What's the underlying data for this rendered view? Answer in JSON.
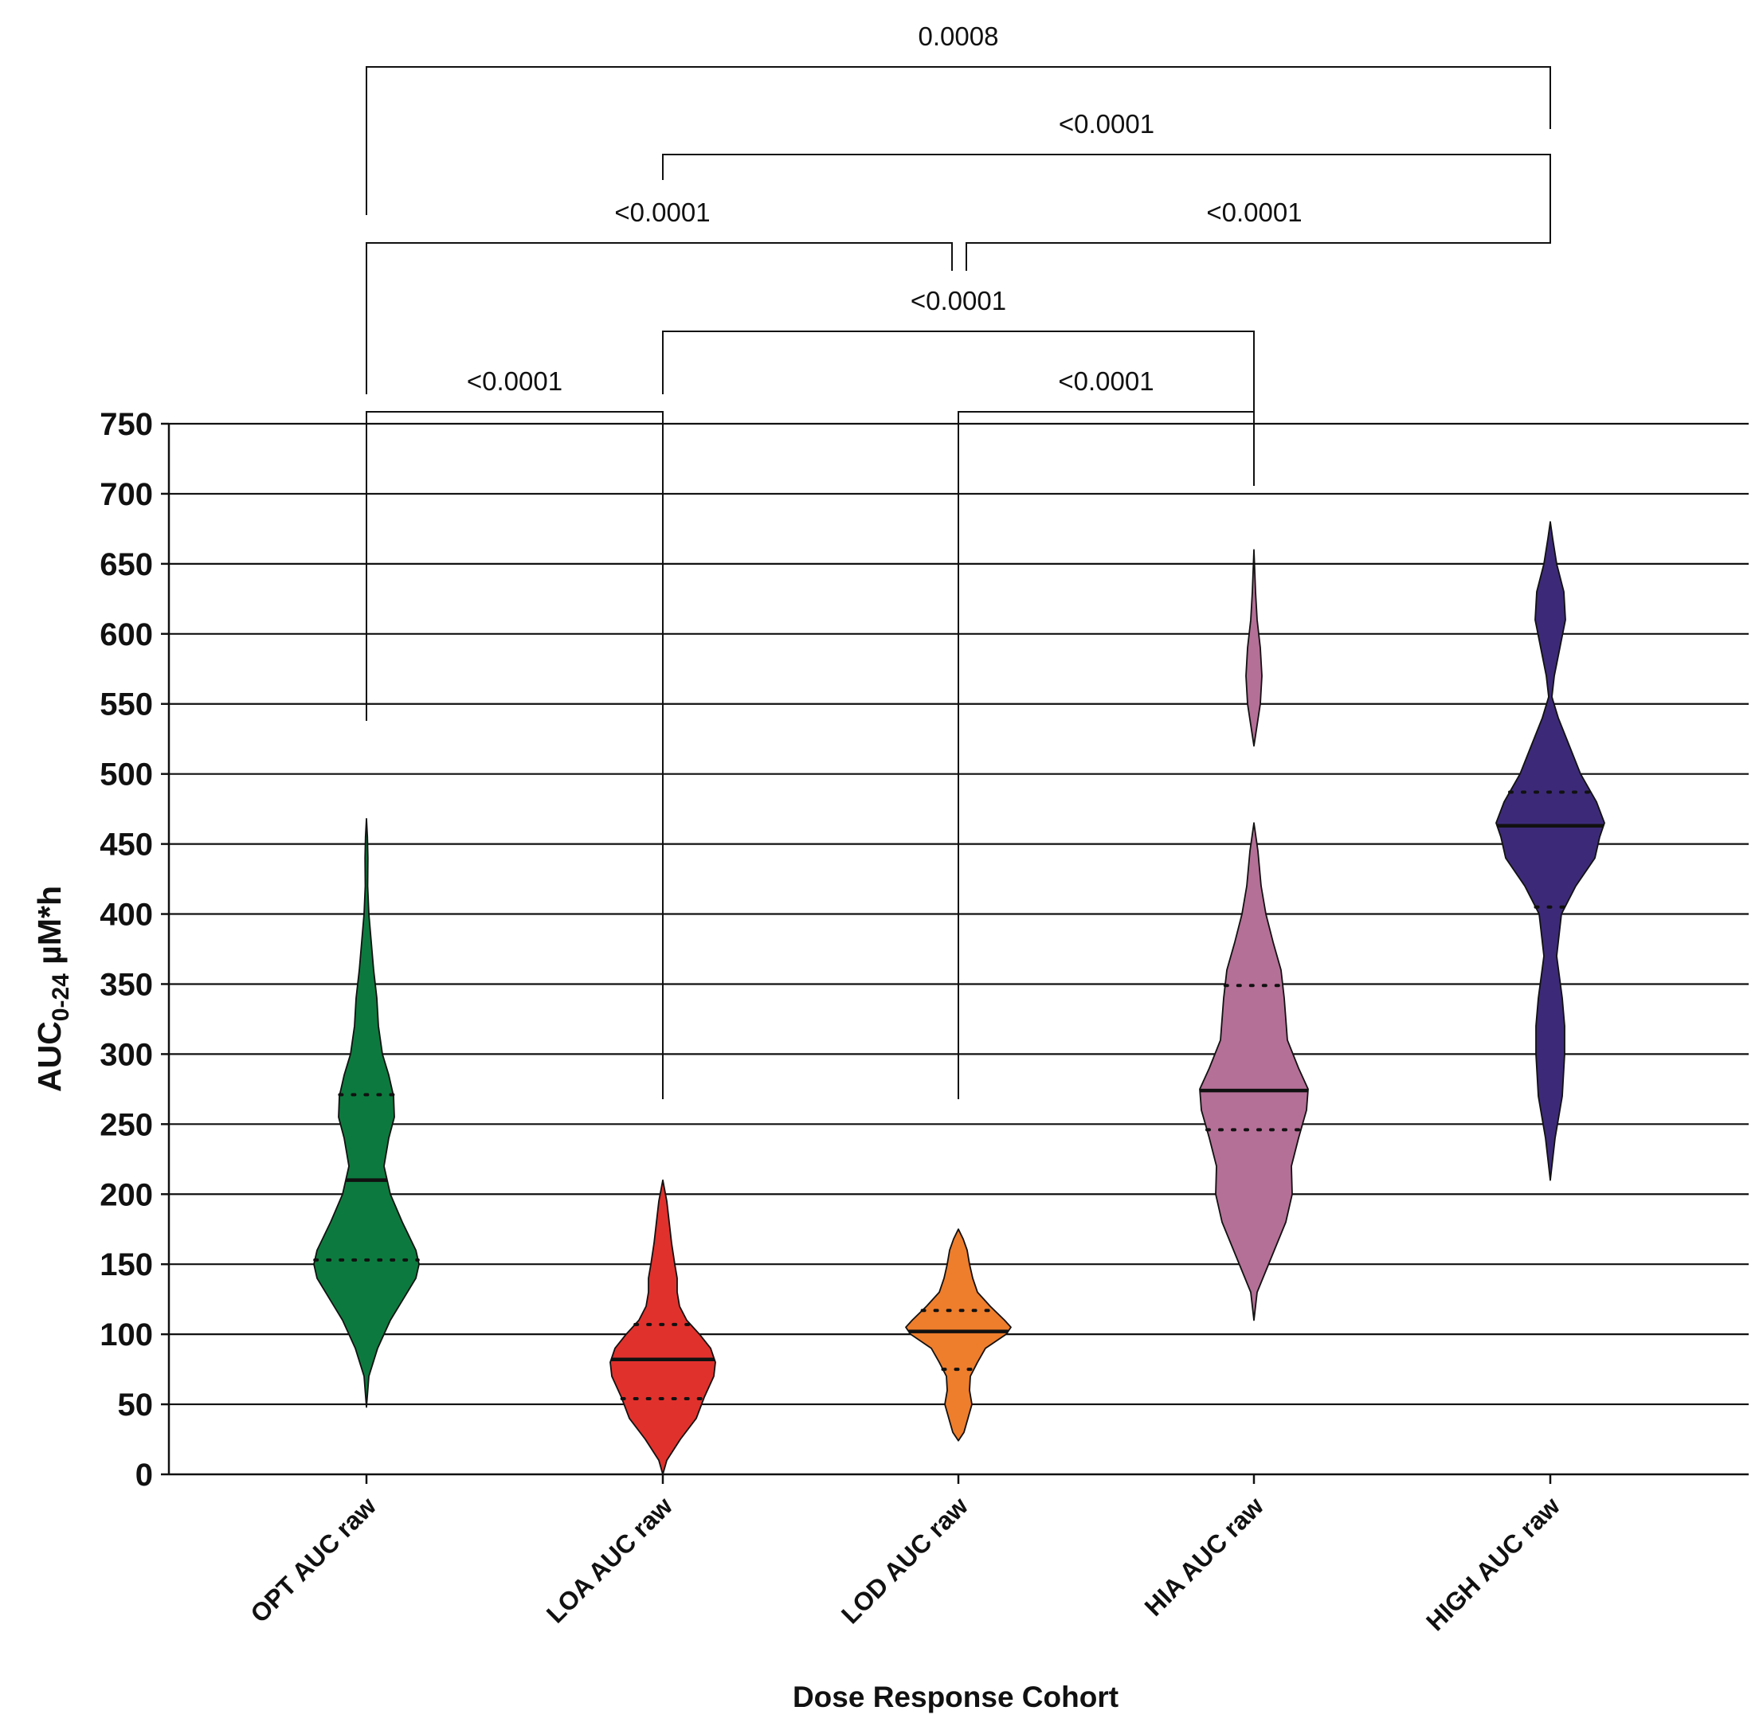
{
  "chart_data": {
    "type": "violin",
    "xlabel": "Dose Response Cohort",
    "ylabel_main": "AUC",
    "ylabel_sub": "0-24",
    "ylabel_unit": " µM*h",
    "ylim": [
      0,
      750
    ],
    "yticks": [
      0,
      50,
      100,
      150,
      200,
      250,
      300,
      350,
      400,
      450,
      500,
      550,
      600,
      650,
      700,
      750
    ],
    "grid": "horizontal",
    "categories": [
      "OPT AUC raw",
      "LOA AUC raw",
      "LOD AUC raw",
      "HIA AUC raw",
      "HIGH AUC raw"
    ],
    "series": [
      {
        "category": "OPT AUC raw",
        "color": "#0c7a3e",
        "min": 48,
        "max": 468,
        "median": 210,
        "q1": 153,
        "q3": 271,
        "profile": [
          [
            48,
            0
          ],
          [
            70,
            3
          ],
          [
            90,
            14
          ],
          [
            110,
            30
          ],
          [
            125,
            46
          ],
          [
            140,
            62
          ],
          [
            150,
            66
          ],
          [
            160,
            62
          ],
          [
            180,
            45
          ],
          [
            200,
            30
          ],
          [
            220,
            22
          ],
          [
            240,
            28
          ],
          [
            255,
            35
          ],
          [
            270,
            34
          ],
          [
            285,
            28
          ],
          [
            300,
            20
          ],
          [
            320,
            15
          ],
          [
            340,
            13
          ],
          [
            360,
            9
          ],
          [
            380,
            6
          ],
          [
            400,
            3
          ],
          [
            420,
            1.5
          ],
          [
            440,
            1.8
          ],
          [
            455,
            1.2
          ],
          [
            468,
            0
          ]
        ]
      },
      {
        "category": "LOA AUC raw",
        "color": "#e1312c",
        "min": 0,
        "max": 210,
        "median": 82,
        "q1": 54,
        "q3": 107,
        "profile": [
          [
            0,
            0
          ],
          [
            10,
            5
          ],
          [
            25,
            22
          ],
          [
            40,
            42
          ],
          [
            55,
            52
          ],
          [
            70,
            64
          ],
          [
            80,
            66
          ],
          [
            90,
            60
          ],
          [
            100,
            46
          ],
          [
            110,
            30
          ],
          [
            120,
            21
          ],
          [
            130,
            18
          ],
          [
            140,
            18
          ],
          [
            150,
            15
          ],
          [
            165,
            11
          ],
          [
            180,
            8
          ],
          [
            195,
            5
          ],
          [
            210,
            0
          ]
        ]
      },
      {
        "category": "LOD AUC raw",
        "color": "#ee7d2c",
        "min": 24,
        "max": 175,
        "median": 102,
        "q1": 75,
        "q3": 117,
        "profile": [
          [
            24,
            0
          ],
          [
            30,
            7
          ],
          [
            40,
            12
          ],
          [
            50,
            17
          ],
          [
            60,
            14
          ],
          [
            70,
            15
          ],
          [
            80,
            24
          ],
          [
            90,
            34
          ],
          [
            100,
            60
          ],
          [
            105,
            66
          ],
          [
            110,
            58
          ],
          [
            120,
            40
          ],
          [
            130,
            24
          ],
          [
            140,
            18
          ],
          [
            150,
            14
          ],
          [
            160,
            11
          ],
          [
            168,
            6
          ],
          [
            175,
            0
          ]
        ]
      },
      {
        "category": "HIA AUC raw",
        "color": "#b57097",
        "min": 110,
        "max": 660,
        "median": 274,
        "q1": 246,
        "q3": 349,
        "profile": [
          [
            110,
            0
          ],
          [
            130,
            4
          ],
          [
            155,
            22
          ],
          [
            180,
            40
          ],
          [
            200,
            48
          ],
          [
            220,
            47
          ],
          [
            240,
            56
          ],
          [
            260,
            66
          ],
          [
            275,
            68
          ],
          [
            290,
            56
          ],
          [
            310,
            42
          ],
          [
            340,
            38
          ],
          [
            360,
            34
          ],
          [
            380,
            24
          ],
          [
            400,
            15
          ],
          [
            420,
            9
          ],
          [
            445,
            5
          ],
          [
            465,
            0
          ],
          [
            520,
            0
          ],
          [
            535,
            4
          ],
          [
            550,
            8
          ],
          [
            570,
            10
          ],
          [
            590,
            8
          ],
          [
            610,
            4
          ],
          [
            630,
            2
          ],
          [
            660,
            0
          ]
        ]
      },
      {
        "category": "HIGH AUC raw",
        "color": "#3c2a78",
        "min": 210,
        "max": 680,
        "median": 463,
        "q1": 405,
        "q3": 487,
        "profile": [
          [
            210,
            0
          ],
          [
            240,
            6
          ],
          [
            270,
            15
          ],
          [
            300,
            18
          ],
          [
            320,
            18
          ],
          [
            340,
            15
          ],
          [
            370,
            8
          ],
          [
            400,
            14
          ],
          [
            420,
            32
          ],
          [
            440,
            56
          ],
          [
            455,
            62
          ],
          [
            465,
            68
          ],
          [
            480,
            58
          ],
          [
            500,
            38
          ],
          [
            520,
            24
          ],
          [
            540,
            10
          ],
          [
            555,
            2
          ],
          [
            570,
            5
          ],
          [
            590,
            12
          ],
          [
            610,
            19
          ],
          [
            630,
            17
          ],
          [
            650,
            8
          ],
          [
            668,
            3
          ],
          [
            680,
            0
          ]
        ]
      }
    ],
    "comparisons": [
      {
        "from": 1,
        "to": 2,
        "label": "<0.0001"
      },
      {
        "from": 3,
        "to": 4,
        "label": "<0.0001"
      },
      {
        "from": 2,
        "to": 4,
        "label": "<0.0001"
      },
      {
        "from": 1,
        "to": 3,
        "label": "<0.0001"
      },
      {
        "from": 3,
        "to": 5,
        "label": "<0.0001"
      },
      {
        "from": 2,
        "to": 5,
        "label": "<0.0001"
      },
      {
        "from": 1,
        "to": 5,
        "label": "0.0008"
      }
    ]
  }
}
